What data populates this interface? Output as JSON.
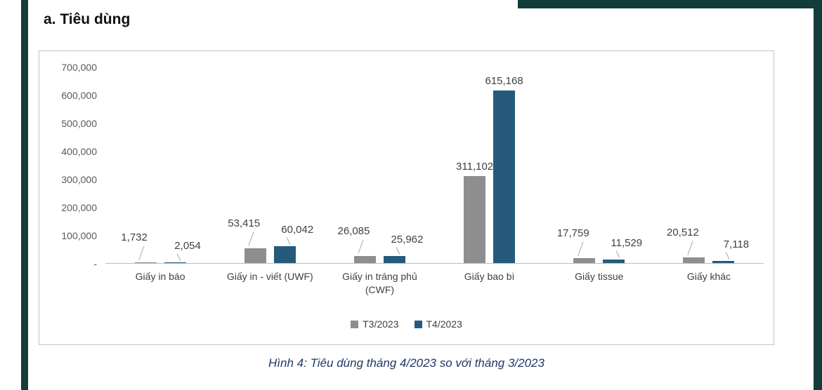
{
  "page": {
    "section_title": "a. Tiêu dùng",
    "caption": "Hình 4: Tiêu dùng tháng 4/2023 so với tháng 3/2023"
  },
  "chart_data": {
    "type": "bar",
    "title": "",
    "categories": [
      "Giấy in báo",
      "Giấy in - viết (UWF)",
      "Giấy in tráng phủ (CWF)",
      "Giấy bao bì",
      "Giấy tissue",
      "Giấy khác"
    ],
    "series": [
      {
        "name": "T3/2023",
        "color": "#8e8e8e",
        "values": [
          1732,
          53415,
          26085,
          311102,
          17759,
          20512
        ],
        "labels": [
          "1,732",
          "53,415",
          "26,085",
          "311,102",
          "17,759",
          "20,512"
        ]
      },
      {
        "name": "T4/2023",
        "color": "#265a7c",
        "values": [
          2054,
          60042,
          25962,
          615168,
          11529,
          7118
        ],
        "labels": [
          "2,054",
          "60,042",
          "25,962",
          "615,168",
          "11,529",
          "7,118"
        ]
      }
    ],
    "y_ticks": [
      "700,000",
      "600,000",
      "500,000",
      "400,000",
      "300,000",
      "200,000",
      "100,000",
      "-"
    ],
    "ylim": [
      0,
      700000
    ],
    "grid": false,
    "legend_position": "bottom"
  },
  "colors": {
    "series_t3_2023": "#8e8e8e",
    "series_t4_2023": "#265a7c",
    "caption_text": "#1f3864",
    "page_border": "#123d3a",
    "axis_text": "#595959",
    "label_text": "#404040"
  }
}
